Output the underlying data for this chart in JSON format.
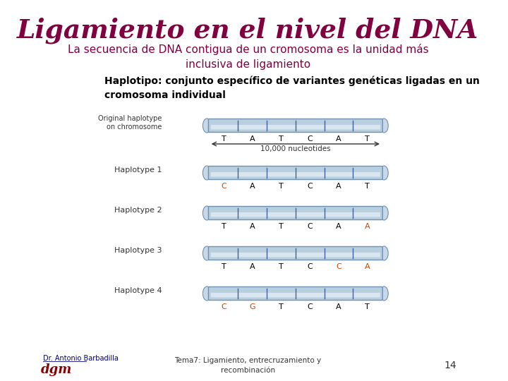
{
  "title": "Ligamiento en el nivel del DNA",
  "title_color": "#800040",
  "subtitle": "La secuencia de DNA contigua de un cromosoma es la unidad más\ninclusiva de ligamiento",
  "subtitle_color": "#800040",
  "haplotipo_text": "Haplotipo: conjunto específico de variantes genéticas ligadas en un\ncromosoma individual",
  "haplotipo_color": "#000000",
  "original_label": "Original haplotype\non chromosome",
  "original_bases": [
    "T",
    "A",
    "T",
    "C",
    "A",
    "T"
  ],
  "nucleotides_label": "10,000 nucleotides",
  "haplotypes": [
    {
      "label": "Haplotype 1",
      "bases": [
        "C",
        "A",
        "T",
        "C",
        "A",
        "T"
      ],
      "changed": [
        0
      ]
    },
    {
      "label": "Haplotype 2",
      "bases": [
        "T",
        "A",
        "T",
        "C",
        "A",
        "A"
      ],
      "changed": [
        5
      ]
    },
    {
      "label": "Haplotype 3",
      "bases": [
        "T",
        "A",
        "T",
        "C",
        "C",
        "A"
      ],
      "changed": [
        4,
        5
      ]
    },
    {
      "label": "Haplotype 4",
      "bases": [
        "C",
        "G",
        "T",
        "C",
        "A",
        "T"
      ],
      "changed": [
        0,
        1
      ]
    }
  ],
  "changed_color": "#cc4400",
  "normal_color": "#000000",
  "chromosome_color": "#b8cfe0",
  "chromosome_border": "#7090b0",
  "divider_color": "#4060a0",
  "footer_left": "Dr. Antonio Barbadilla",
  "footer_center": "Tema7: Ligamiento, entrecruzamiento y\nrecombinación",
  "footer_page": "14",
  "bg_color": "#ffffff"
}
